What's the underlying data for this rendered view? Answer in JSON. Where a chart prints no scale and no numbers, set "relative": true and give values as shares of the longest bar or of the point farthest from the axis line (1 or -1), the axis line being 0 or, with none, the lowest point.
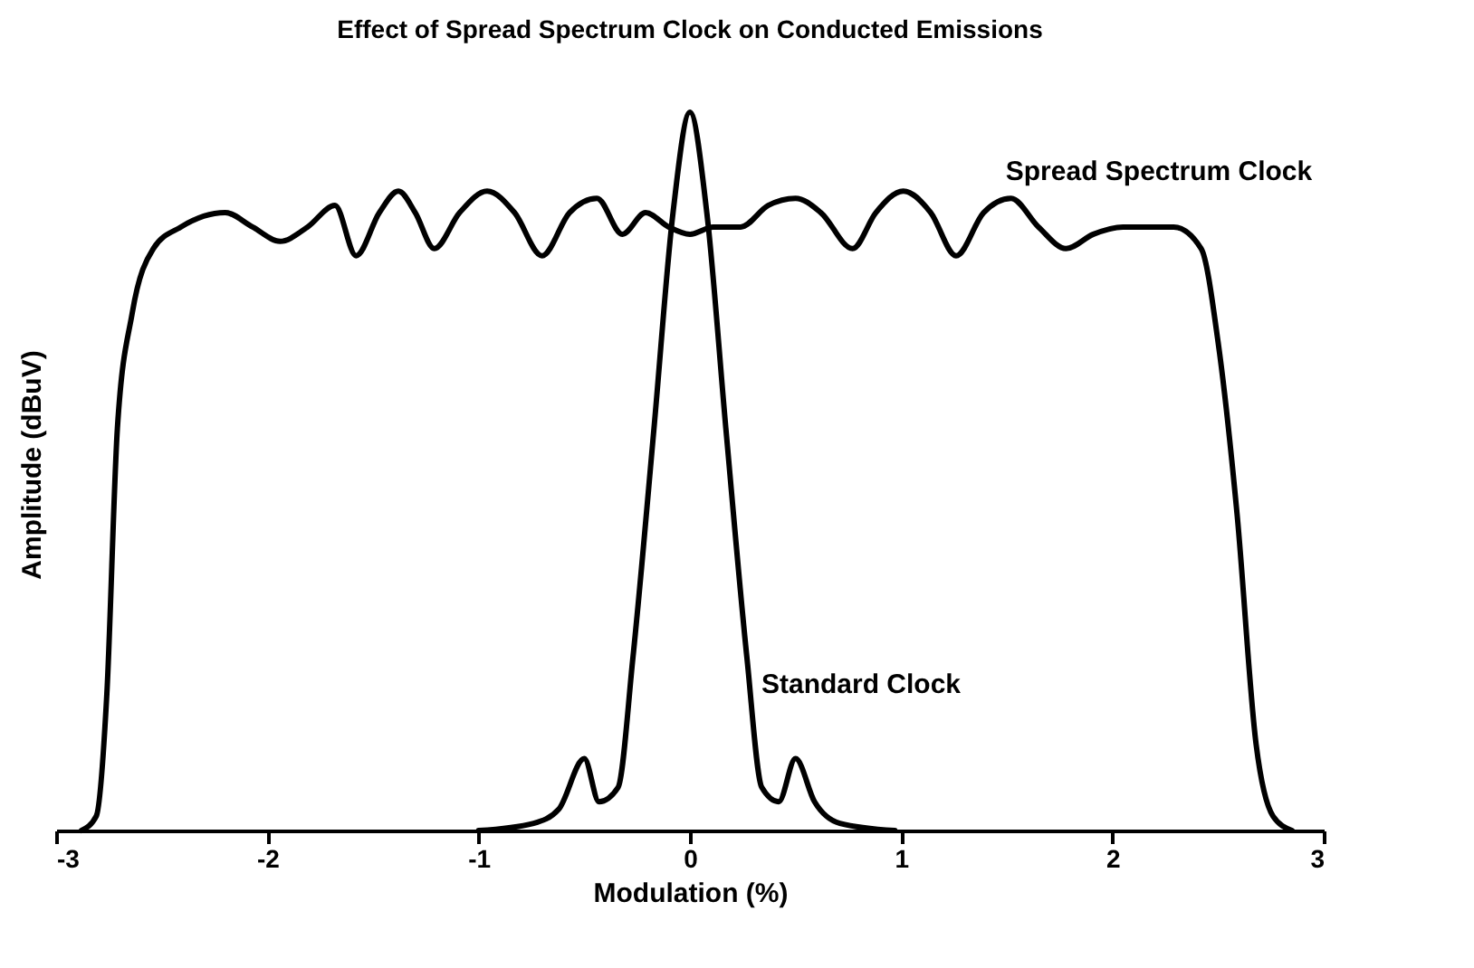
{
  "chart_data": {
    "type": "line",
    "title": "Effect of Spread Spectrum Clock on Conducted Emissions",
    "xlabel": "Modulation (%)",
    "ylabel": "Amplitude (dBuV)",
    "relative": true,
    "xlim": [
      -3,
      3
    ],
    "xticks": [
      -3,
      -2,
      -1,
      0,
      1,
      2,
      3
    ],
    "grid": false,
    "series": [
      {
        "name": "Spread Spectrum Clock",
        "color": "#000000",
        "x": [
          -2.88,
          -2.81,
          -2.76,
          -2.71,
          -2.64,
          -2.54,
          -2.41,
          -2.2,
          -2.07,
          -1.94,
          -1.81,
          -1.68,
          -1.58,
          -1.47,
          -1.38,
          -1.3,
          -1.21,
          -1.09,
          -0.96,
          -0.83,
          -0.7,
          -0.57,
          -0.44,
          -0.32,
          -0.21,
          -0.1,
          0,
          0.11,
          0.24,
          0.37,
          0.5,
          0.62,
          0.77,
          0.88,
          1.01,
          1.14,
          1.26,
          1.39,
          1.52,
          1.65,
          1.78,
          1.91,
          2.05,
          2.16,
          2.29,
          2.42,
          2.5,
          2.59,
          2.68,
          2.76,
          2.85
        ],
        "values": [
          0,
          0.02,
          0.19,
          0.56,
          0.72,
          0.81,
          0.84,
          0.86,
          0.84,
          0.82,
          0.84,
          0.87,
          0.8,
          0.86,
          0.89,
          0.86,
          0.81,
          0.86,
          0.89,
          0.86,
          0.8,
          0.86,
          0.88,
          0.83,
          0.86,
          0.84,
          0.83,
          0.84,
          0.84,
          0.87,
          0.88,
          0.86,
          0.81,
          0.86,
          0.89,
          0.86,
          0.8,
          0.86,
          0.88,
          0.84,
          0.81,
          0.83,
          0.84,
          0.84,
          0.84,
          0.81,
          0.68,
          0.44,
          0.12,
          0.02,
          0
        ]
      },
      {
        "name": "Standard Clock",
        "color": "#000000",
        "x": [
          -1.0,
          -0.74,
          -0.62,
          -0.5,
          -0.43,
          -0.34,
          -0.27,
          -0.17,
          -0.08,
          0,
          0.08,
          0.17,
          0.27,
          0.34,
          0.42,
          0.5,
          0.59,
          0.71,
          0.97
        ],
        "values": [
          0,
          0.01,
          0.03,
          0.1,
          0.04,
          0.06,
          0.24,
          0.56,
          0.86,
          1,
          0.86,
          0.56,
          0.24,
          0.06,
          0.04,
          0.1,
          0.04,
          0.01,
          0
        ]
      }
    ],
    "line_style": "solid",
    "marker": "none"
  }
}
